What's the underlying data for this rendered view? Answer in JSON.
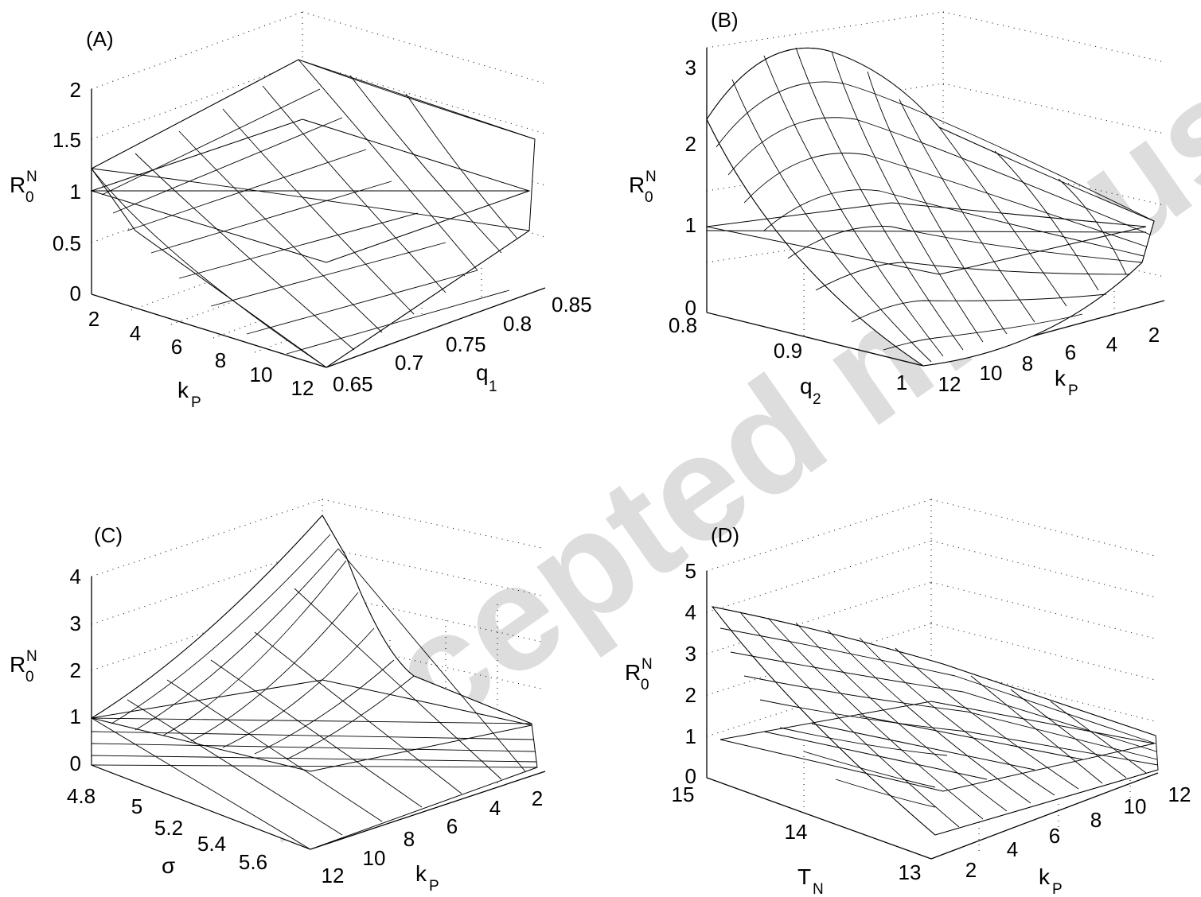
{
  "watermark": "Accepted manuscript",
  "chart_data": [
    {
      "type": "surface",
      "panel": "(A)",
      "zlabel": "R0N",
      "xlabel": "kP",
      "ylabel": "q1",
      "x_ticks": [
        "2",
        "4",
        "6",
        "8",
        "10",
        "12"
      ],
      "y_ticks": [
        "0.65",
        "0.7",
        "0.75",
        "0.8",
        "0.85"
      ],
      "z_ticks": [
        "0",
        "0.5",
        "1",
        "1.5",
        "2"
      ],
      "xlim": [
        2,
        12
      ],
      "ylim": [
        0.65,
        0.85
      ],
      "zlim": [
        0,
        2
      ],
      "grid": true,
      "threshold_plane": 1,
      "corner_values": {
        "kP2_q0.65": 1.2,
        "kP2_q0.85": 2.3,
        "kP12_q0.65": 0.0,
        "kP12_q0.85": 1.45
      }
    },
    {
      "type": "surface",
      "panel": "(B)",
      "zlabel": "R0N",
      "xlabel": "q2",
      "ylabel": "kP",
      "x_ticks": [
        "0.8",
        "0.9",
        "1"
      ],
      "y_ticks": [
        "12",
        "10",
        "8",
        "6",
        "4",
        "2"
      ],
      "z_ticks": [
        "0",
        "1",
        "2",
        "3"
      ],
      "xlim": [
        0.8,
        1
      ],
      "ylim": [
        2,
        12
      ],
      "zlim": [
        0,
        3
      ],
      "grid": true,
      "threshold_plane": 1,
      "corner_values": {
        "q0.8_kP2": 3.0,
        "q0.8_kP12": 2.3,
        "q1_kP2": 1.2,
        "q1_kP12": 0.0
      }
    },
    {
      "type": "surface",
      "panel": "(C)",
      "zlabel": "R0N",
      "xlabel": "σ",
      "ylabel": "kP",
      "x_ticks": [
        "4.8",
        "5",
        "5.2",
        "5.4",
        "5.6"
      ],
      "y_ticks": [
        "12",
        "10",
        "8",
        "6",
        "4",
        "2"
      ],
      "z_ticks": [
        "0",
        "1",
        "2",
        "3",
        "4"
      ],
      "xlim": [
        4.8,
        5.6
      ],
      "ylim": [
        2,
        12
      ],
      "zlim": [
        0,
        4
      ],
      "grid": true,
      "threshold_plane": 1,
      "corner_values": {
        "s4.8_kP2": 4.5,
        "s4.8_kP12": 0.8,
        "s5.6_kP2": 0.2,
        "s5.6_kP12": 0.0
      }
    },
    {
      "type": "surface",
      "panel": "(D)",
      "zlabel": "R0N",
      "xlabel": "kP",
      "ylabel": "TN",
      "x_ticks": [
        "2",
        "4",
        "6",
        "8",
        "10",
        "12"
      ],
      "y_ticks": [
        "15",
        "14",
        "13"
      ],
      "z_ticks": [
        "0",
        "1",
        "2",
        "3",
        "4",
        "5"
      ],
      "xlim": [
        2,
        12
      ],
      "ylim": [
        13,
        15
      ],
      "zlim": [
        0,
        5
      ],
      "grid": true,
      "threshold_plane": 1,
      "corner_values": {
        "kP2_T15": 4.2,
        "kP12_T15": 2.9,
        "kP2_T13": 0.0,
        "kP12_T13": 0.3
      }
    }
  ]
}
